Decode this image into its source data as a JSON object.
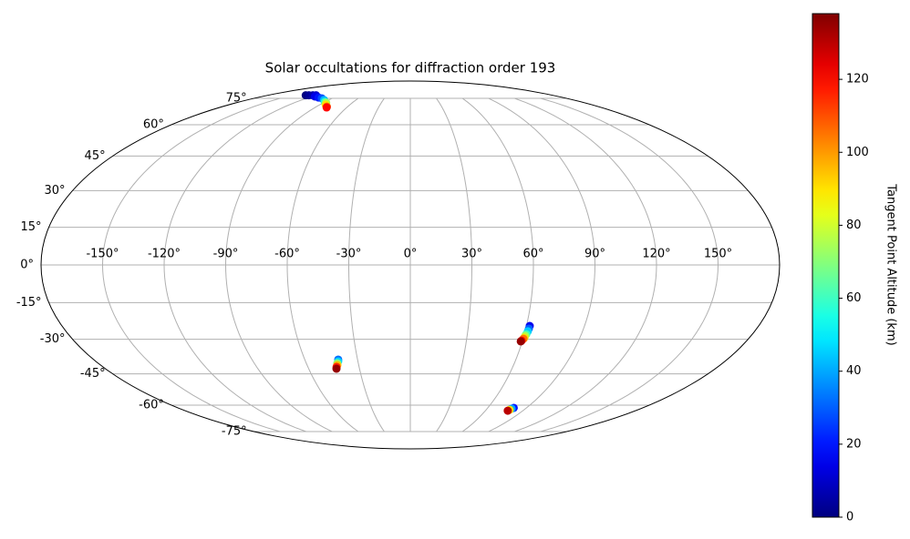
{
  "chart_data": {
    "type": "scatter",
    "projection": "mollweide",
    "title": "Solar occultations for diffraction order 193",
    "x": [
      -132,
      -128,
      -123,
      -119,
      -116,
      -108,
      -102,
      -95,
      -90,
      -87,
      -84,
      -80,
      -79,
      -41.0,
      -41.3,
      -42.1,
      -42.4,
      -43.2,
      -43.6,
      61.7,
      61.6,
      61.4,
      61.0,
      60.7,
      60.5,
      60.2,
      59.5,
      59.2,
      80.1,
      79.1,
      78.5,
      77.9
    ],
    "y": [
      77,
      77,
      77,
      77,
      76.2,
      75.5,
      75.0,
      73.9,
      72.7,
      72.2,
      71.0,
      69.9,
      69.4,
      -38.7,
      -39.5,
      -40.3,
      -41.1,
      -41.9,
      -42.7,
      -24.5,
      -25.6,
      -26.7,
      -27.9,
      -28.6,
      -29.4,
      -29.8,
      -30.6,
      -30.9,
      -61.4,
      -61.8,
      -62.4,
      -62.9
    ],
    "c": [
      0,
      3,
      6,
      10,
      14,
      20,
      28,
      42,
      58,
      74,
      90,
      106,
      120,
      32,
      46,
      70,
      95,
      116,
      135,
      15,
      30,
      45,
      60,
      75,
      90,
      105,
      120,
      135,
      20,
      40,
      90,
      130
    ],
    "xlim": [
      -180,
      180
    ],
    "ylim": [
      -90,
      90
    ],
    "xticks": [
      {
        "value": -150,
        "label": "-150°"
      },
      {
        "value": -120,
        "label": "-120°"
      },
      {
        "value": -90,
        "label": "-90°"
      },
      {
        "value": -60,
        "label": "-60°"
      },
      {
        "value": -30,
        "label": "-30°"
      },
      {
        "value": 0,
        "label": "0°"
      },
      {
        "value": 30,
        "label": "30°"
      },
      {
        "value": 60,
        "label": "60°"
      },
      {
        "value": 90,
        "label": "90°"
      },
      {
        "value": 120,
        "label": "120°"
      },
      {
        "value": 150,
        "label": "150°"
      }
    ],
    "yticks": [
      {
        "value": -75,
        "label": "-75°"
      },
      {
        "value": -60,
        "label": "-60°"
      },
      {
        "value": -45,
        "label": "-45°"
      },
      {
        "value": -30,
        "label": "-30°"
      },
      {
        "value": -15,
        "label": "-15°"
      },
      {
        "value": 0,
        "label": "0°"
      },
      {
        "value": 15,
        "label": "15°"
      },
      {
        "value": 30,
        "label": "30°"
      },
      {
        "value": 45,
        "label": "45°"
      },
      {
        "value": 60,
        "label": "60°"
      },
      {
        "value": 75,
        "label": "75°"
      }
    ],
    "grid": true,
    "colormap": "jet",
    "clim": [
      0,
      138
    ],
    "cticks": [
      0,
      20,
      40,
      60,
      80,
      100,
      120
    ],
    "colorbar_label": "Tangent Point Altitude (km)"
  }
}
